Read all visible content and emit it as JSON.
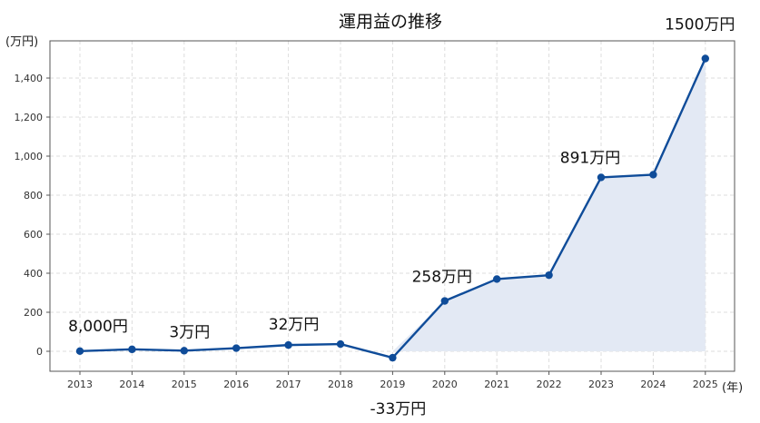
{
  "chart_data": {
    "type": "line",
    "title": "運用益の推移",
    "ylabel": "(万円)",
    "xlabel": "(年)",
    "x": [
      "2013",
      "2014",
      "2015",
      "2016",
      "2017",
      "2018",
      "2019",
      "2020",
      "2021",
      "2022",
      "2023",
      "2024",
      "2025"
    ],
    "series": [
      {
        "values": [
          0.8,
          10,
          3,
          16,
          32,
          37,
          -33,
          258,
          370,
          390,
          891,
          905,
          1500
        ]
      }
    ],
    "ylim": [
      -100,
      1580
    ],
    "yticks": [
      0,
      200,
      400,
      600,
      800,
      1000,
      1200,
      1400
    ],
    "ytick_labels": [
      "0",
      "200",
      "400",
      "600",
      "800",
      "1,000",
      "1,200",
      "1,400"
    ],
    "grid": true,
    "area_fill": true,
    "line_color": "#0f4c99",
    "fill_color": "#e3e9f4",
    "annotations": [
      {
        "index": 0,
        "text": "8,000円"
      },
      {
        "index": 2,
        "text": "3万円"
      },
      {
        "index": 4,
        "text": "32万円"
      },
      {
        "index": 6,
        "text": "-33万円"
      },
      {
        "index": 7,
        "text": "258万円"
      },
      {
        "index": 10,
        "text": "891万円"
      },
      {
        "index": 12,
        "text": "1500万円"
      }
    ]
  }
}
